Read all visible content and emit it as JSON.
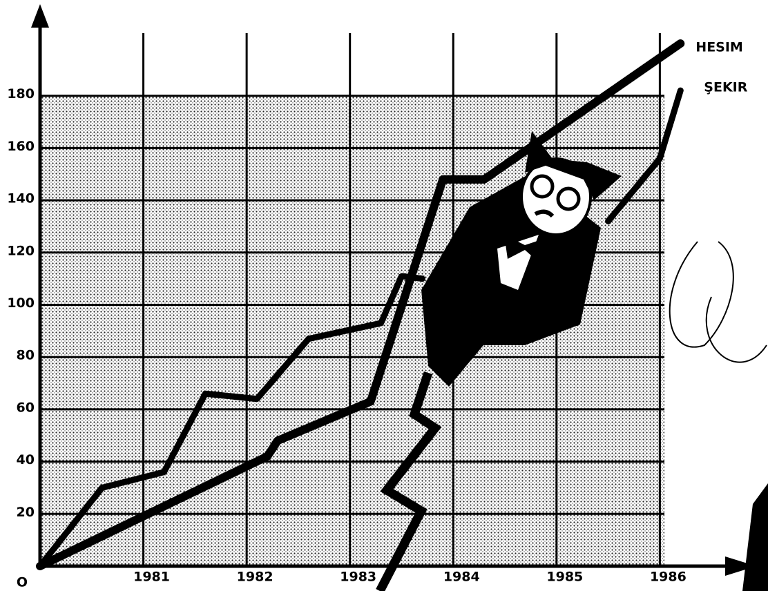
{
  "chart_data": {
    "type": "line",
    "xlim": [
      1980,
      1986.9
    ],
    "ylim": [
      0,
      214
    ],
    "xticks": [
      1981,
      1982,
      1983,
      1984,
      1985,
      1986
    ],
    "yticks": [
      {
        "value": 0,
        "label": "O"
      },
      20,
      40,
      60,
      80,
      100,
      120,
      140,
      160,
      180
    ],
    "grid": true,
    "series": [
      {
        "name": "HESIM",
        "color": "#000000",
        "x": [
          1980,
          1982.2,
          1982.3,
          1983.2,
          1983.9,
          1984.3,
          1986.2
        ],
        "values": [
          0,
          42,
          48,
          63,
          148,
          148,
          200
        ]
      },
      {
        "name": "ŞEKIR",
        "color": "#000000",
        "x": [
          1980,
          1980.6,
          1981.2,
          1981.6,
          1982.1,
          1982.6,
          1983.3,
          1983.5,
          1983.7,
          1984.5,
          1985.5,
          1986,
          1986.2
        ],
        "values": [
          0,
          30,
          36,
          66,
          64,
          87,
          93,
          111,
          110,
          null,
          132,
          156,
          182
        ]
      }
    ]
  }
}
